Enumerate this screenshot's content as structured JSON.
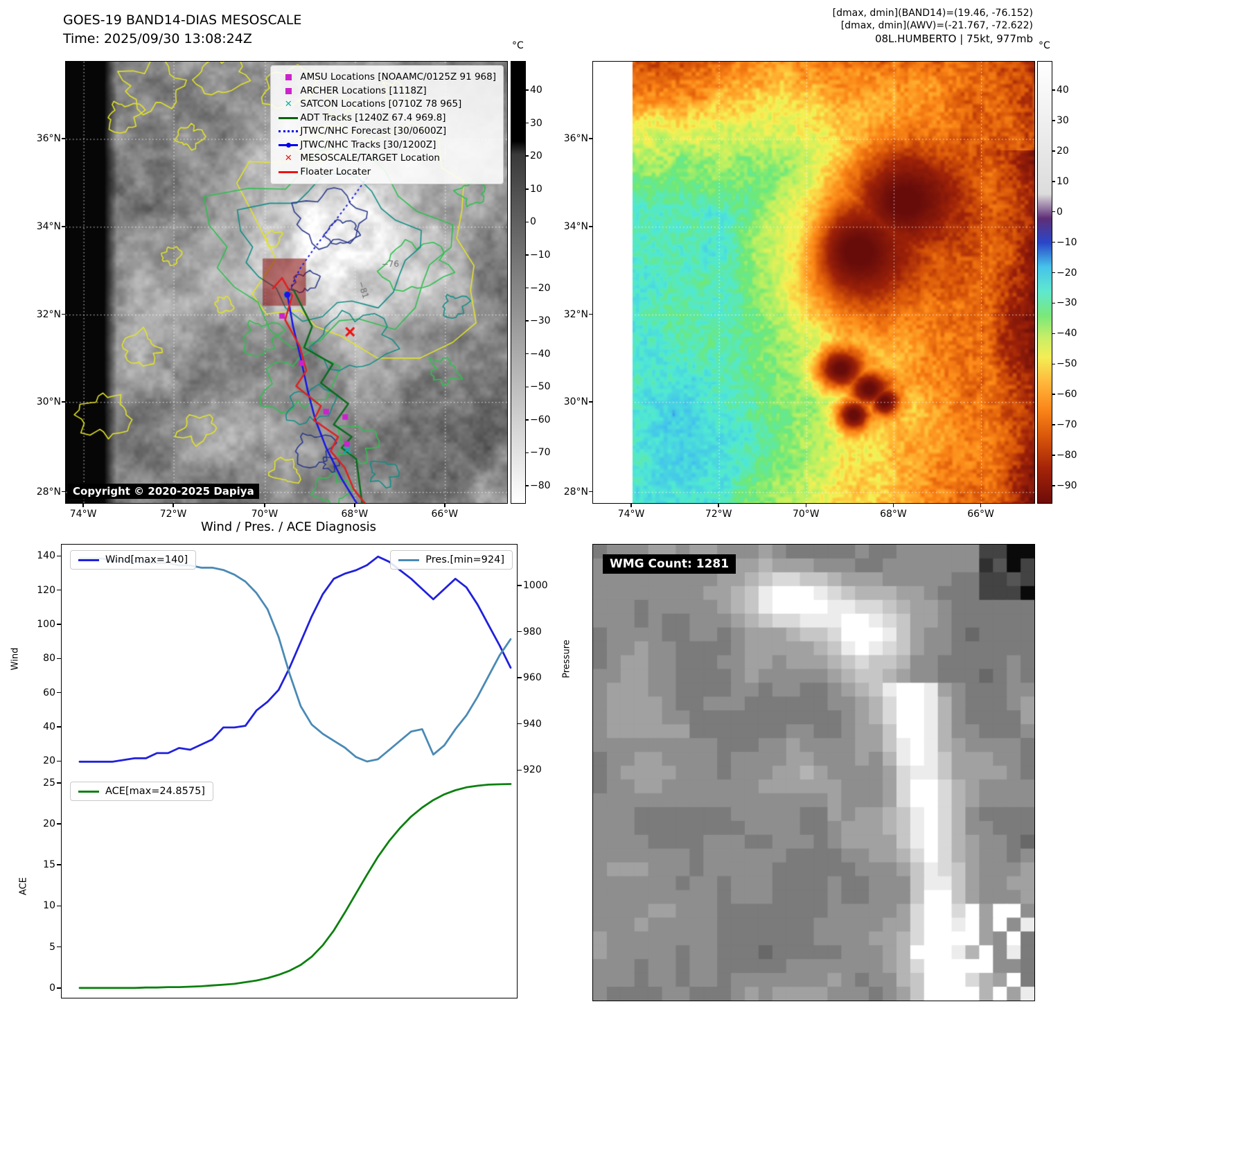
{
  "panel_band14": {
    "title": "GOES-19 BAND14-DIAS MESOSCALE",
    "subtitle": "Time: 2025/09/30 13:08:24Z",
    "copyright": "Copyright © 2020-2025 Dapiya",
    "colorbar": {
      "unit": "°C",
      "ticks": [
        40,
        30,
        20,
        10,
        0,
        -10,
        -20,
        -30,
        -40,
        -50,
        -60,
        -70,
        -80
      ],
      "gradient": [
        "#000000",
        "#3a3a3a",
        "#ffffff"
      ]
    },
    "contour_labels": [
      "-76",
      "-81"
    ],
    "legend": [
      {
        "label": "AMSU Locations [NOAAMC/0125Z 91 968]",
        "marker": "square",
        "color": "#cc22cc"
      },
      {
        "label": "ARCHER Locations [1118Z]",
        "marker": "square",
        "color": "#cc22cc"
      },
      {
        "label": "SATCON Locations [0710Z 78 965]",
        "marker": "x",
        "color": "#00b0b0"
      },
      {
        "label": "ADT Tracks [1240Z 67.4 969.8]",
        "marker": "line",
        "color": "#006400"
      },
      {
        "label": "JTWC/NHC Forecast [30/0600Z]",
        "marker": "dotted",
        "color": "#0000ee"
      },
      {
        "label": "JTWC/NHC Tracks [30/1200Z]",
        "marker": "line-dot",
        "color": "#0000ee"
      },
      {
        "label": "MESOSCALE/TARGET Location",
        "marker": "x",
        "color": "#ee1111"
      },
      {
        "label": "Floater Locater",
        "marker": "line",
        "color": "#ee1111"
      }
    ]
  },
  "panel_awv": {
    "header_line1": "[dmax, dmin](BAND14)=(19.46, -76.152)",
    "header_line2": "[dmax, dmin](AWV)=(-21.767, -72.622)",
    "header_line3": "08L.HUMBERTO | 75kt, 977mb",
    "colorbar": {
      "unit": "°C",
      "ticks": [
        40,
        30,
        20,
        10,
        0,
        -10,
        -20,
        -30,
        -40,
        -50,
        -60,
        -70,
        -80,
        -90
      ],
      "gradient": [
        "#ffffff",
        "#dcdcdc",
        "#5f2e77",
        "#2a46c8",
        "#46c3ea",
        "#5fe8cf",
        "#79e87a",
        "#c8ee66",
        "#f4ee55",
        "#ffb43a",
        "#fa8418",
        "#d8560a",
        "#a52408",
        "#6e0c0a"
      ]
    }
  },
  "geo": {
    "lat_ticks": [
      "36°N",
      "34°N",
      "32°N",
      "30°N",
      "28°N"
    ],
    "lon_ticks": [
      "74°W",
      "72°W",
      "70°W",
      "68°W",
      "66°W"
    ]
  },
  "panel_diagnosis": {
    "title": "Wind / Pres. / ACE Diagnosis",
    "wind_legend": "Wind[max=140]",
    "pres_legend": "Pres.[min=924]",
    "ace_legend": "ACE[max=24.8575]",
    "ylabel_wind": "Wind",
    "ylabel_pressure": "Pressure",
    "ylabel_ace": "ACE"
  },
  "panel_wmg": {
    "count_label": "WMG Count: 1281"
  },
  "chart_data": [
    {
      "type": "line",
      "title": "Wind / Pres. / ACE Diagnosis",
      "x_axis": "time (no tick labels shown)",
      "grid": false,
      "series": [
        {
          "name": "Wind[max=140]",
          "yaxis": "left",
          "color": "#2020dd",
          "values": [
            20,
            20,
            20,
            20,
            21,
            22,
            22,
            25,
            25,
            28,
            27,
            30,
            33,
            40,
            40,
            41,
            50,
            55,
            62,
            75,
            90,
            105,
            118,
            127,
            130,
            132,
            135,
            140,
            137,
            132,
            127,
            121,
            115,
            121,
            127,
            122,
            112,
            100,
            88,
            75
          ]
        },
        {
          "name": "Pres.[min=924]",
          "yaxis": "right",
          "color": "#4a8ab5",
          "values": [
            1012,
            1012,
            1012,
            1011,
            1011,
            1011,
            1010,
            1010,
            1010,
            1009,
            1009,
            1008,
            1008,
            1007,
            1005,
            1002,
            997,
            990,
            978,
            962,
            948,
            940,
            936,
            933,
            930,
            926,
            924,
            925,
            929,
            933,
            937,
            938,
            927,
            931,
            938,
            944,
            952,
            961,
            970,
            977
          ]
        }
      ],
      "ylabel_left": "Wind",
      "ylabel_right": "Pressure",
      "ylim_left": [
        12,
        147
      ],
      "ylim_right": [
        918,
        1018
      ],
      "yticks_left": [
        20,
        40,
        60,
        80,
        100,
        120,
        140
      ],
      "yticks_right": [
        920,
        940,
        960,
        980,
        1000
      ],
      "legend_position": [
        "upper left",
        "upper right"
      ]
    },
    {
      "type": "line",
      "grid": false,
      "series": [
        {
          "name": "ACE[max=24.8575]",
          "color": "#0c8010",
          "values": [
            0,
            0,
            0,
            0,
            0,
            0,
            0.05,
            0.05,
            0.1,
            0.1,
            0.15,
            0.2,
            0.3,
            0.4,
            0.5,
            0.7,
            0.9,
            1.2,
            1.6,
            2.1,
            2.8,
            3.8,
            5.2,
            7,
            9.2,
            11.5,
            13.8,
            16,
            17.9,
            19.5,
            20.9,
            22,
            22.9,
            23.6,
            24.1,
            24.45,
            24.65,
            24.78,
            24.83,
            24.8575
          ]
        }
      ],
      "ylabel": "ACE",
      "ylim": [
        -1.2,
        26
      ],
      "yticks": [
        0,
        5,
        10,
        15,
        20,
        25
      ],
      "legend_position": "upper left"
    }
  ]
}
